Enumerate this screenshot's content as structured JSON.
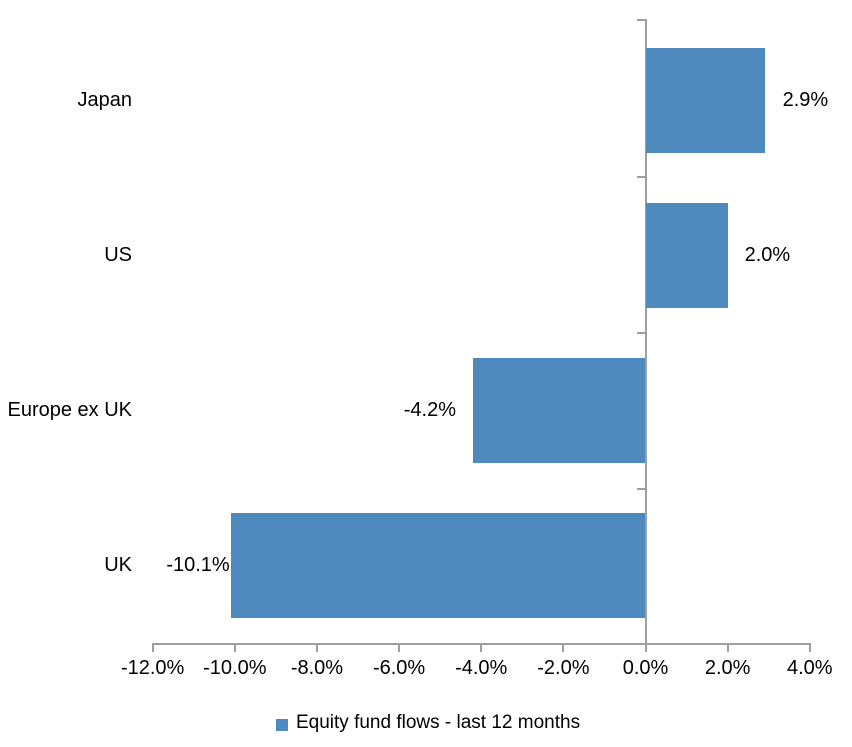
{
  "chart_data": {
    "type": "bar",
    "orientation": "horizontal",
    "title": "",
    "categories": [
      "Japan",
      "US",
      "Europe ex UK",
      "UK"
    ],
    "values": [
      2.9,
      2.0,
      -4.2,
      -10.1
    ],
    "data_labels": [
      "2.9%",
      "2.0%",
      "-4.2%",
      "-10.1%"
    ],
    "series_name": "Equity fund flows - last 12 months",
    "x_ticks": [
      -12,
      -10,
      -8,
      -6,
      -4,
      -2,
      0,
      2,
      4
    ],
    "x_tick_labels": [
      "-12.0%",
      "-10.0%",
      "-8.0%",
      "-6.0%",
      "-4.0%",
      "-2.0%",
      "0.0%",
      "2.0%",
      "4.0%"
    ],
    "xlim": [
      -12,
      4
    ],
    "grid": "off",
    "legend_position": "bottom",
    "bar_color": "#4E8ABE",
    "axis_color": "#9e9e9e",
    "text_color": "#000000"
  }
}
